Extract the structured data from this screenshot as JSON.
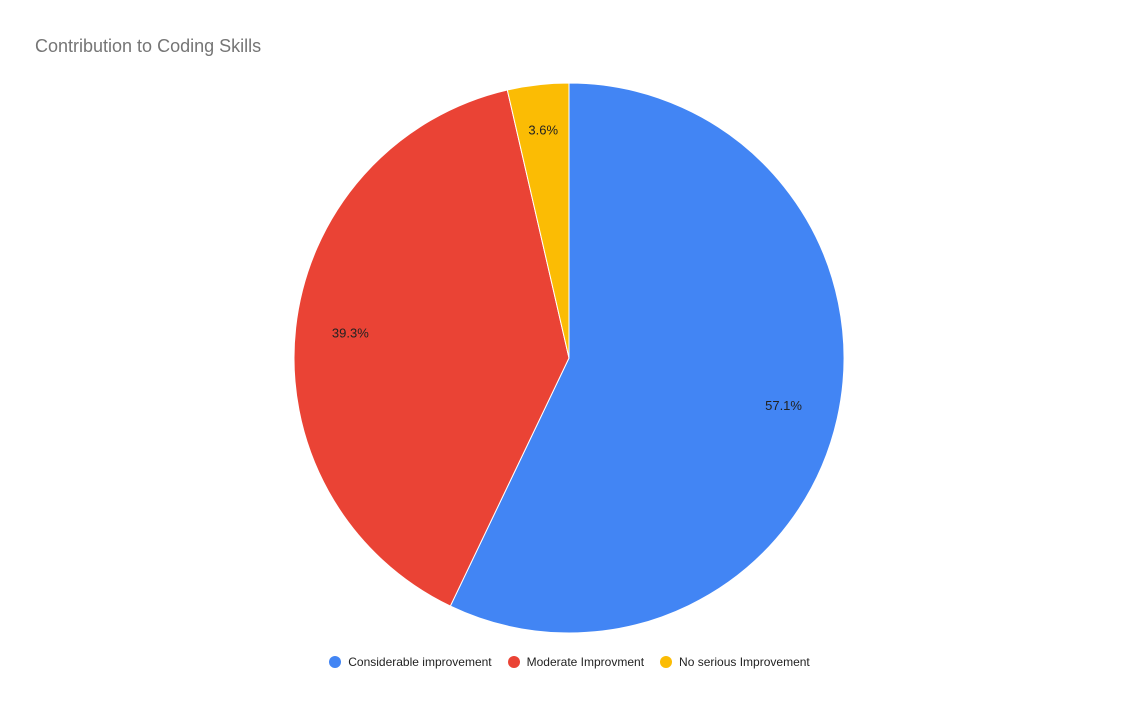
{
  "chart_data": {
    "type": "pie",
    "title": "Contribution to Coding Skills",
    "legend_position": "bottom",
    "slices": [
      {
        "name": "Considerable improvement",
        "value": 57.1,
        "label": "57.1%",
        "color": "#4285F4"
      },
      {
        "name": "Moderate Improvment",
        "value": 39.3,
        "label": "39.3%",
        "color": "#EA4335"
      },
      {
        "name": "No serious Improvement",
        "value": 3.6,
        "label": "3.6%",
        "color": "#FBBC04"
      }
    ]
  }
}
